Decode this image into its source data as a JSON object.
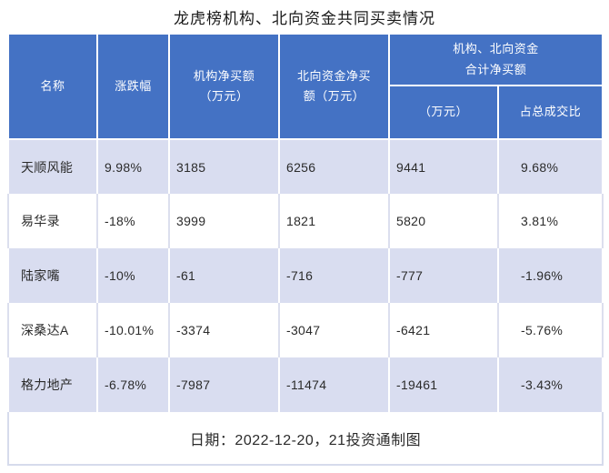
{
  "title": "龙虎榜机构、北向资金共同买卖情况",
  "colors": {
    "header_bg": "#4472C4",
    "alt_row_bg": "#D9DDF0",
    "grid_line_on_white": "#DCDFEE",
    "outer_border": "#D6DBEC",
    "header_text": "#FFFFFF",
    "body_text": "#2B2B2B"
  },
  "table": {
    "headers": {
      "name": "名称",
      "change": "涨跌幅",
      "inst": "机构净买额\n（万元）",
      "north": "北向资金净买\n额（万元）",
      "combined_group": "机构、北向资金\n合计净买额",
      "combined_amount": "（万元）",
      "combined_ratio": "占总成交比"
    },
    "rows": [
      {
        "name": "天顺风能",
        "change": "9.98%",
        "inst": "3185",
        "north": "6256",
        "combined": "9441",
        "ratio": "9.68%"
      },
      {
        "name": "易华录",
        "change": "-18%",
        "inst": "3999",
        "north": "1821",
        "combined": "5820",
        "ratio": "3.81%"
      },
      {
        "name": "陆家嘴",
        "change": "-10%",
        "inst": "-61",
        "north": "-716",
        "combined": "-777",
        "ratio": "-1.96%"
      },
      {
        "name": "深桑达A",
        "change": "-10.01%",
        "inst": "-3374",
        "north": "-3047",
        "combined": "-6421",
        "ratio": "-5.76%"
      },
      {
        "name": "格力地产",
        "change": "-6.78%",
        "inst": "-7987",
        "north": "-11474",
        "combined": "-19461",
        "ratio": "-3.43%"
      }
    ],
    "footer": "日期：2022-12-20，21投资通制图"
  },
  "chart_data": {
    "type": "table",
    "title": "龙虎榜机构、北向资金共同买卖情况",
    "columns": [
      "名称",
      "涨跌幅",
      "机构净买额（万元）",
      "北向资金净买额（万元）",
      "机构、北向资金合计净买额（万元）",
      "机构、北向资金合计净买额占总成交比"
    ],
    "rows": [
      [
        "天顺风能",
        "9.98%",
        3185,
        6256,
        9441,
        "9.68%"
      ],
      [
        "易华录",
        "-18%",
        3999,
        1821,
        5820,
        "3.81%"
      ],
      [
        "陆家嘴",
        "-10%",
        -61,
        -716,
        -777,
        "-1.96%"
      ],
      [
        "深桑达A",
        "-10.01%",
        -3374,
        -3047,
        -6421,
        "-5.76%"
      ],
      [
        "格力地产",
        "-6.78%",
        -7987,
        -11474,
        -19461,
        "-3.43%"
      ]
    ],
    "note": "日期：2022-12-20，21投资通制图",
    "layout_hints": {
      "merged_header": "机构、北向资金合计净买额 spans last two columns",
      "alt_row_shading": "odd data rows shaded lavender",
      "grid": "on"
    }
  }
}
